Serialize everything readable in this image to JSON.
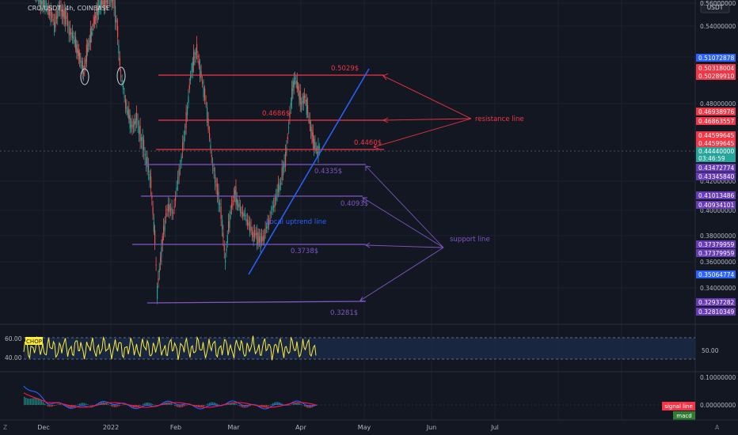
{
  "header": {
    "symbol_title": "CRO/USDT, 4h, COINBASE",
    "currency_button": "USDT"
  },
  "colors": {
    "background": "#131722",
    "grid": "#1f2430",
    "up": "#26a69a",
    "down": "#ef5350",
    "resistance": "#f23645",
    "support": "#7e57c2",
    "trend": "#2962ff",
    "chop": "#ffeb3b",
    "macd_line": "#2962ff",
    "signal_line": "#ff1744"
  },
  "price_axis": {
    "ticks": [
      "0.56000000",
      "0.54000000",
      "0.52000000",
      "0.48000000",
      "0.42000000",
      "0.40000000",
      "0.38000000",
      "0.36000000",
      "0.34000000"
    ],
    "tags": [
      {
        "text": "0.51072878",
        "color": "#2962ff"
      },
      {
        "text": "0.50318004",
        "color": "#f23645"
      },
      {
        "text": "0.50289910",
        "color": "#f23645"
      },
      {
        "text": "0.46938976",
        "color": "#f23645"
      },
      {
        "text": "0.46863557",
        "color": "#f23645"
      },
      {
        "text": "0.44599645",
        "color": "#f23645"
      },
      {
        "text": "0.44599645",
        "color": "#f23645"
      },
      {
        "text": "0.44440000",
        "color": "#26a69a"
      },
      {
        "text": "03:46:59",
        "color": "#26a69a"
      },
      {
        "text": "0.43472774",
        "color": "#673ab7"
      },
      {
        "text": "0.43345840",
        "color": "#673ab7"
      },
      {
        "text": "0.41013486",
        "color": "#673ab7"
      },
      {
        "text": "0.40934101",
        "color": "#673ab7"
      },
      {
        "text": "0.37379959",
        "color": "#673ab7"
      },
      {
        "text": "0.37379959",
        "color": "#673ab7"
      },
      {
        "text": "0.35064774",
        "color": "#2962ff"
      },
      {
        "text": "0.32937282",
        "color": "#673ab7"
      },
      {
        "text": "0.32810349",
        "color": "#673ab7"
      }
    ]
  },
  "annotations": {
    "resistance_levels": [
      "0.5029$",
      "0.4686$",
      "0.4460$"
    ],
    "support_levels": [
      "0.4335$",
      "0.4093$",
      "0.3738$",
      "0.3281$"
    ],
    "resistance_text": "resistance line",
    "support_text": "support line",
    "trend_text": "Local uptrend line"
  },
  "chop_pane": {
    "badge": "CHOP",
    "left_ticks": [
      "60.00",
      "40.00"
    ],
    "right_value": "50.00"
  },
  "macd_pane": {
    "tick_upper": "0.10000000",
    "tick_zero": "0.00000000",
    "signal_label": "signal line",
    "macd_label": "macd"
  },
  "time_axis": {
    "labels": [
      "Dec",
      "2022",
      "Feb",
      "Mar",
      "Apr",
      "May",
      "Jun",
      "Jul"
    ],
    "left_button": "Z",
    "right_button": "A"
  }
}
